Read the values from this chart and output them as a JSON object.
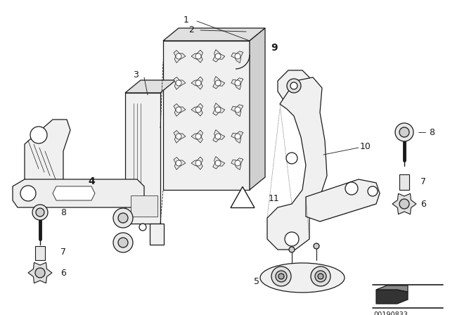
{
  "bg_color": "#ffffff",
  "line_color": "#1a1a1a",
  "fig_width": 6.4,
  "fig_height": 4.48,
  "dpi": 100,
  "image_id": "00190833"
}
